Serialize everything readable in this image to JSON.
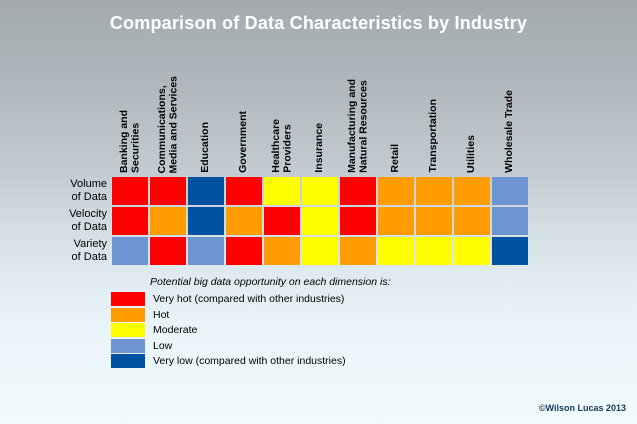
{
  "slide": {
    "title": "Comparison of Data Characteristics by Industry",
    "copyright": "©Wilson Lucas 2013"
  },
  "colors": {
    "title_text": "#FFFFFF",
    "copyright_text": "#17375D",
    "background_top": "#A4AAAD",
    "background_bottom": "#F1FBFD"
  },
  "chart_data": {
    "type": "heatmap",
    "title": "Comparison of Data Characteristics by Industry",
    "columns": [
      {
        "label": "Banking and\nSecurities"
      },
      {
        "label": "Communications,\nMedia and Services"
      },
      {
        "label": "Education"
      },
      {
        "label": "Government"
      },
      {
        "label": "Healthcare\nProviders"
      },
      {
        "label": "Insurance"
      },
      {
        "label": "Manufacturing and\nNatural Resources"
      },
      {
        "label": "Retail"
      },
      {
        "label": "Transportation"
      },
      {
        "label": "Utilities"
      },
      {
        "label": "Wholesale Trade"
      }
    ],
    "rows": [
      {
        "label": "Volume\nof Data",
        "values": [
          "very_hot",
          "very_hot",
          "very_low",
          "very_hot",
          "moderate",
          "moderate",
          "very_hot",
          "hot",
          "hot",
          "hot",
          "low"
        ]
      },
      {
        "label": "Velocity\nof Data",
        "values": [
          "very_hot",
          "hot",
          "very_low",
          "hot",
          "very_hot",
          "moderate",
          "very_hot",
          "hot",
          "hot",
          "hot",
          "low"
        ]
      },
      {
        "label": "Variety\nof Data",
        "values": [
          "low",
          "very_hot",
          "low",
          "very_hot",
          "hot",
          "moderate",
          "hot",
          "moderate",
          "moderate",
          "moderate",
          "very_low"
        ]
      }
    ],
    "legend": {
      "title": "Potential big data opportunity on each dimension is:",
      "position": "bottom-left",
      "items": [
        {
          "key": "very_hot",
          "label": "Very hot (compared with other industries)",
          "color": "#FF0000"
        },
        {
          "key": "hot",
          "label": "Hot",
          "color": "#FF9C00"
        },
        {
          "key": "moderate",
          "label": "Moderate",
          "color": "#FFFF00"
        },
        {
          "key": "low",
          "label": "Low",
          "color": "#6E94D1"
        },
        {
          "key": "very_low",
          "label": "Very low (compared with other industries)",
          "color": "#00519F"
        }
      ]
    }
  }
}
